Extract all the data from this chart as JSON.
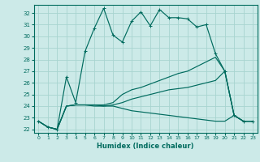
{
  "xlabel": "Humidex (Indice chaleur)",
  "xlim": [
    -0.5,
    23.5
  ],
  "ylim": [
    21.7,
    32.7
  ],
  "xticks": [
    0,
    1,
    2,
    3,
    4,
    5,
    6,
    7,
    8,
    9,
    10,
    11,
    12,
    13,
    14,
    15,
    16,
    17,
    18,
    19,
    20,
    21,
    22,
    23
  ],
  "yticks": [
    22,
    23,
    24,
    25,
    26,
    27,
    28,
    29,
    30,
    31,
    32
  ],
  "background_color": "#cceae8",
  "grid_color": "#a8d4d0",
  "line_color": "#006b5e",
  "curves": {
    "main": [
      22.7,
      22.2,
      22.0,
      26.5,
      24.3,
      28.7,
      30.7,
      32.4,
      30.1,
      29.5,
      31.3,
      32.1,
      30.9,
      32.3,
      31.6,
      31.6,
      31.5,
      30.8,
      31.0,
      28.5,
      27.0,
      23.2,
      22.7,
      22.7
    ],
    "rising1": [
      22.7,
      22.2,
      22.0,
      24.0,
      24.1,
      24.1,
      24.1,
      24.1,
      24.3,
      25.0,
      25.4,
      25.6,
      25.9,
      26.2,
      26.5,
      26.8,
      27.0,
      27.4,
      27.8,
      28.2,
      27.0,
      23.2,
      22.7,
      22.7
    ],
    "rising2": [
      22.7,
      22.2,
      22.0,
      24.0,
      24.1,
      24.1,
      24.0,
      24.0,
      24.1,
      24.3,
      24.6,
      24.8,
      25.0,
      25.2,
      25.4,
      25.5,
      25.6,
      25.8,
      26.0,
      26.2,
      27.0,
      23.2,
      22.7,
      22.7
    ],
    "flat": [
      22.7,
      22.2,
      22.0,
      24.0,
      24.1,
      24.1,
      24.1,
      24.0,
      24.0,
      23.8,
      23.6,
      23.5,
      23.4,
      23.3,
      23.2,
      23.1,
      23.0,
      22.9,
      22.8,
      22.7,
      22.7,
      23.2,
      22.7,
      22.7
    ]
  }
}
